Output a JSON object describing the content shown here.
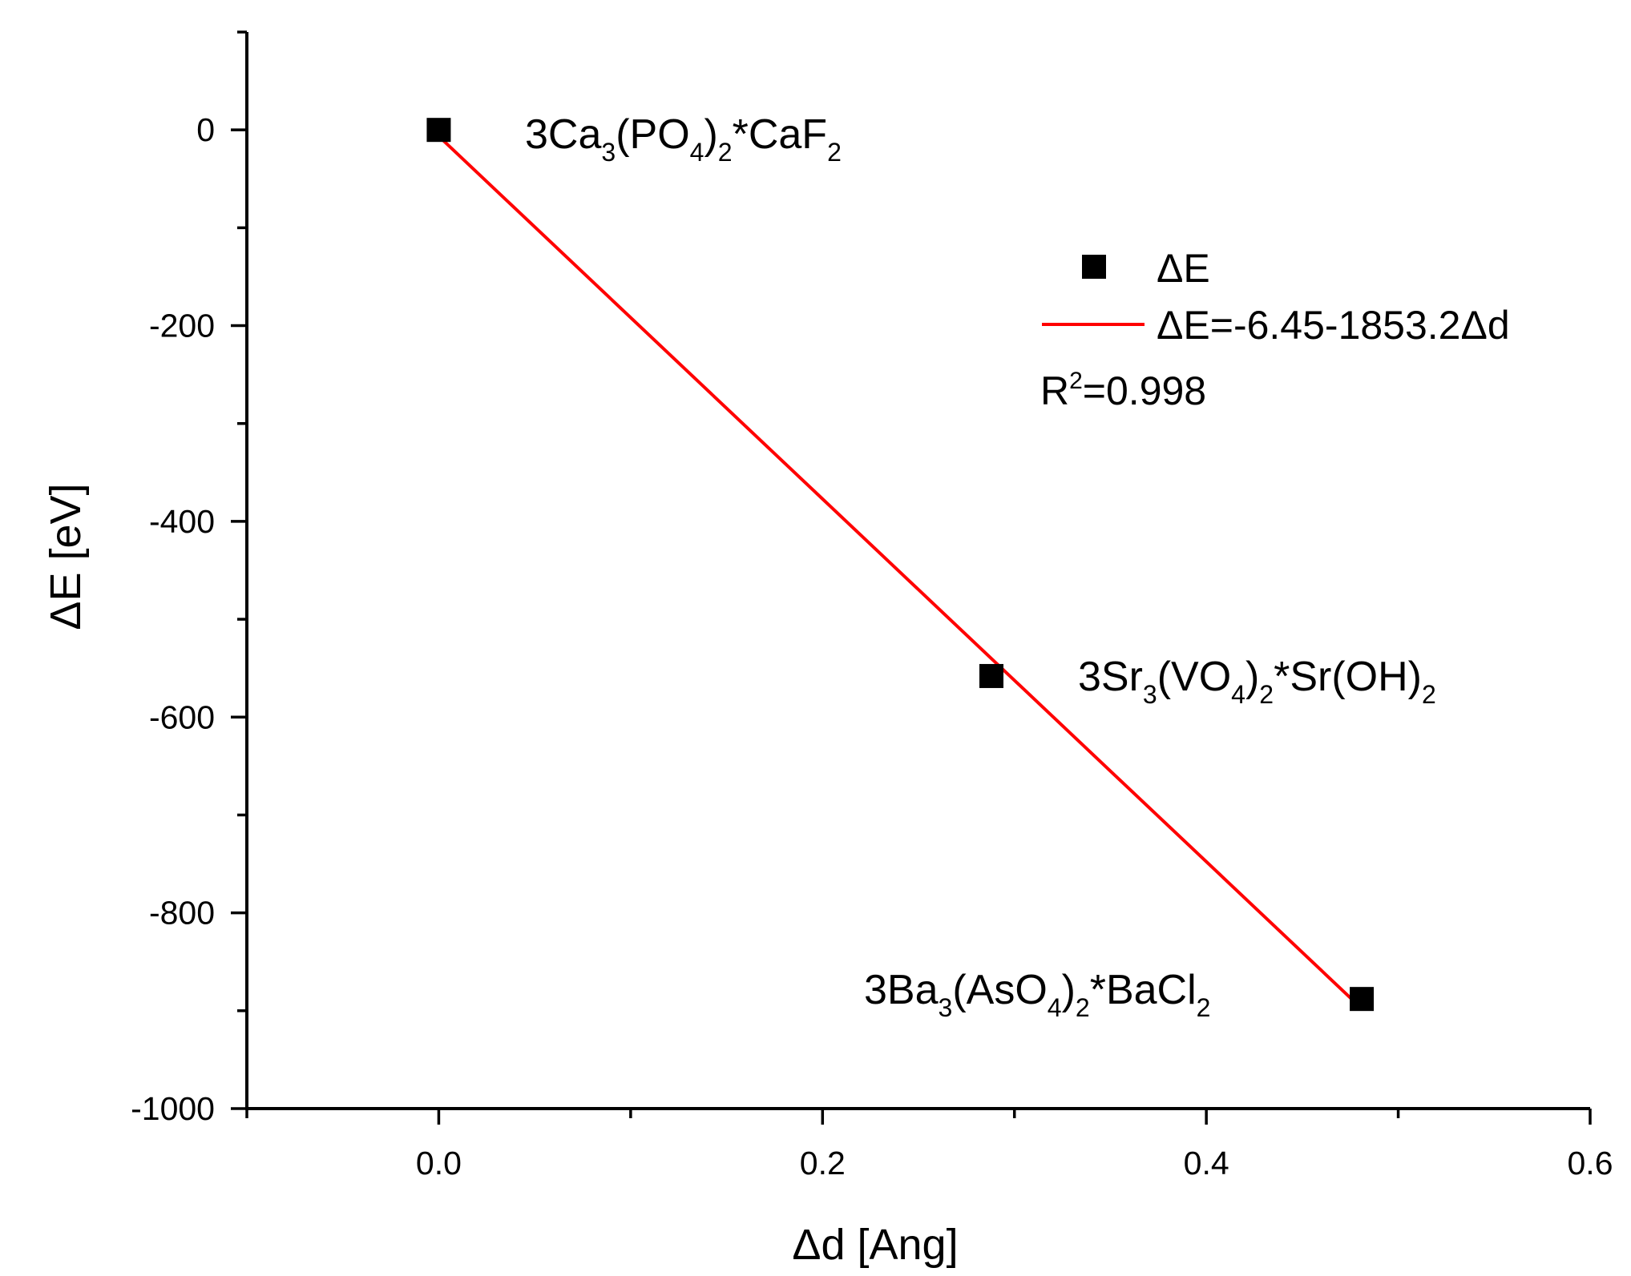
{
  "chart_data": {
    "type": "scatter",
    "xlabel": "Δd [Ang]",
    "ylabel": "ΔE [eV]",
    "xlim": [
      -0.1,
      0.6
    ],
    "ylim": [
      -1000,
      100
    ],
    "x_ticks": [
      0.0,
      0.2,
      0.4,
      0.6
    ],
    "x_tick_labels": [
      "0.0",
      "0.2",
      "0.4",
      "0.6"
    ],
    "x_minor_ticks": [
      -0.1,
      0.1,
      0.3,
      0.5
    ],
    "y_ticks": [
      0,
      -200,
      -400,
      -600,
      -800,
      -1000
    ],
    "y_tick_labels": [
      "0",
      "-200",
      "-400",
      "-600",
      "-800",
      "-1000"
    ],
    "y_minor_ticks": [
      100,
      -100,
      -300,
      -500,
      -700,
      -900
    ],
    "series": [
      {
        "name": "ΔE",
        "marker": "square",
        "color": "#000000",
        "points": [
          {
            "x": 0.0,
            "y": 0,
            "label": {
              "base": "3Ca",
              "s1": "3",
              "m1": "(PO",
              "s2": "4",
              "m2": ")",
              "s3": "2",
              "m3": "*CaF",
              "s4": "2"
            }
          },
          {
            "x": 0.288,
            "y": -558,
            "label": {
              "base": "3Sr",
              "s1": "3",
              "m1": "(VO",
              "s2": "4",
              "m2": ")",
              "s3": "2",
              "m3": "*Sr(OH)",
              "s4": "2"
            }
          },
          {
            "x": 0.481,
            "y": -888,
            "label": {
              "base": "3Ba",
              "s1": "3",
              "m1": "(AsO",
              "s2": "4",
              "m2": ")",
              "s3": "2",
              "m3": "*BaCl",
              "s4": "2"
            }
          }
        ]
      },
      {
        "name": "ΔE=-6.45-1853.2Δd",
        "type": "line",
        "color": "#ff0000",
        "intercept": -6.45,
        "slope": -1853.2,
        "x_range": [
          0.0,
          0.481
        ]
      }
    ],
    "legend": {
      "position": "upper-right",
      "marker_label": "ΔE",
      "line_label": "ΔE=-6.45-1853.2Δd",
      "r2_prefix": "R",
      "r2_sup": "2",
      "r2_value": "=0.998"
    }
  }
}
